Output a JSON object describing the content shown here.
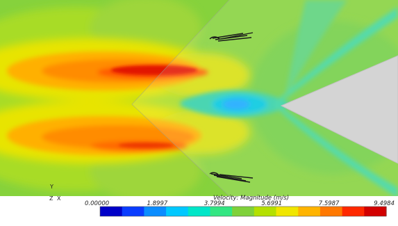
{
  "figure": {
    "kind": "CFD velocity magnitude contour",
    "background_color": "#7fd13a",
    "solid_body_color": "#d4d4d4"
  },
  "axes_triad": {
    "y": "Y",
    "z": "Z",
    "x": "X"
  },
  "colorbar": {
    "title": "Velocity: Magnitude (m/s)",
    "ticks": [
      "0.00000",
      "1.8997",
      "3.7994",
      "5.6991",
      "7.5987",
      "9.4984"
    ],
    "min": 0.0,
    "max": 9.4984,
    "colors": [
      "#0000c8",
      "#0a3cff",
      "#0a8cff",
      "#00c8ff",
      "#00e6c8",
      "#32e682",
      "#7fd13a",
      "#b4e000",
      "#f0e600",
      "#ffb400",
      "#ff7800",
      "#ff2800",
      "#d20000"
    ]
  }
}
